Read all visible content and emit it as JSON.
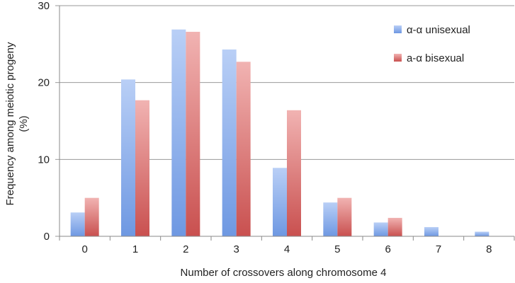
{
  "chart_data": {
    "type": "bar",
    "title": "",
    "xlabel": "Number of crossovers along chromosome 4",
    "ylabel_line1": "Frequency among meiotic progeny",
    "ylabel_line2": "(%)",
    "categories": [
      "0",
      "1",
      "2",
      "3",
      "4",
      "5",
      "6",
      "7",
      "8"
    ],
    "ylim": [
      0,
      30
    ],
    "yticks": [
      0,
      10,
      20,
      30
    ],
    "grid": true,
    "legend_position": "top-right",
    "series": [
      {
        "name": "α-α unisexual",
        "values": [
          3.1,
          20.4,
          26.9,
          24.3,
          8.9,
          4.4,
          1.8,
          1.2,
          0.6
        ],
        "color_top": "#b9cff6",
        "color_bottom": "#6e98e2"
      },
      {
        "name": "a-α bisexual",
        "values": [
          5.0,
          17.7,
          26.6,
          22.7,
          16.4,
          5.0,
          2.4,
          0,
          0
        ],
        "color_top": "#f1b3b2",
        "color_bottom": "#c9504f"
      }
    ]
  }
}
